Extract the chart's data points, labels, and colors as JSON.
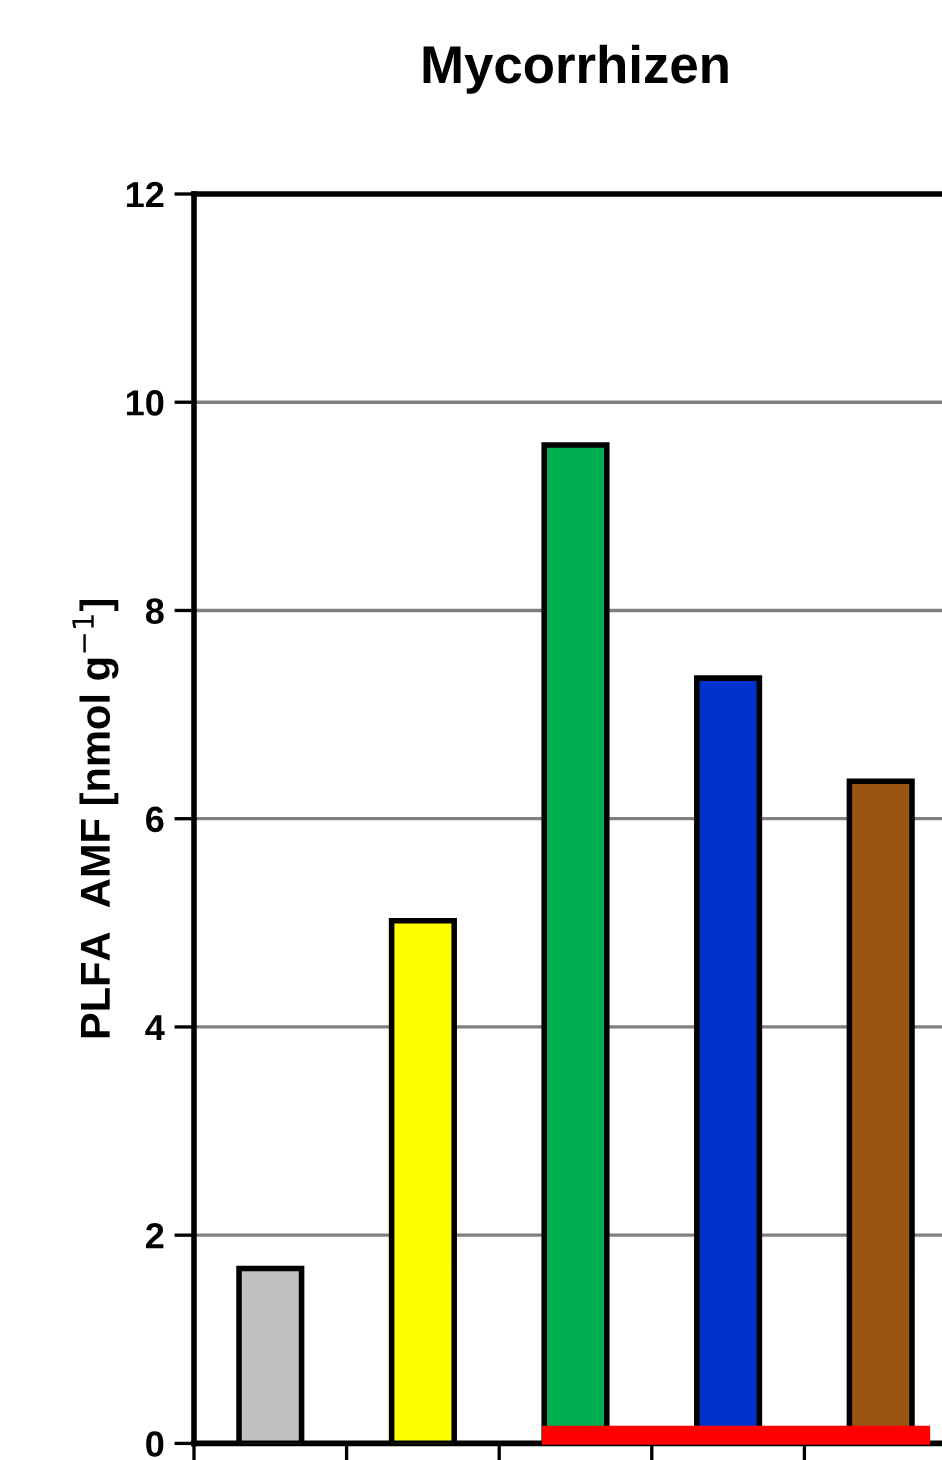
{
  "chart_data": {
    "type": "bar",
    "title": "Mycorrhizen",
    "ylabel": "PLFA  AMF [nmol g$^{−1}$]",
    "categories": [
      null,
      null,
      null,
      null,
      null
    ],
    "values": [
      1.68,
      5.02,
      9.59,
      7.35,
      6.36
    ],
    "colors": [
      "#c0c0c0",
      "#ffff00",
      "#00b050",
      "#0033cc",
      "#995511"
    ],
    "ylim": [
      0,
      12
    ],
    "yticks": [
      0,
      2,
      4,
      6,
      8,
      10,
      12
    ],
    "grid": "y",
    "tick_labels": "y"
  }
}
